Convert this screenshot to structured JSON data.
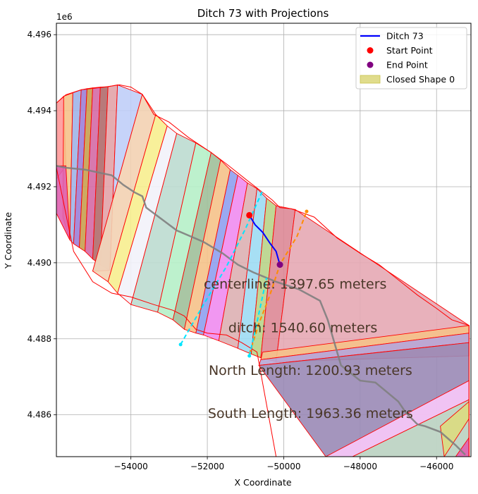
{
  "colors": {
    "ditch": "#0000ff",
    "start": "#ff0000",
    "end": "#800080",
    "closed_shape_fill": "#e0dc8c",
    "closed_shape_edge": "#c8c24a",
    "strip_edge": "#ff0000",
    "projection_north": "#ff8c00",
    "projection_south": "#00e5ff",
    "centerline": "#808080"
  },
  "chart_data": {
    "type": "scatter",
    "title": "Ditch 73 with Projections",
    "xlabel": "X Coordinate",
    "ylabel": "Y Coordinate",
    "y_offset_label": "1e6",
    "xlim": [
      -55950,
      -45100
    ],
    "ylim": [
      4484900,
      4496300
    ],
    "grid": true,
    "legend_placement": "top-right",
    "x_ticks": [
      -54000,
      -52000,
      -50000,
      -48000,
      -46000
    ],
    "x_tick_labels": [
      "−54000",
      "−52000",
      "−50000",
      "−48000",
      "−46000"
    ],
    "y_ticks": [
      4486000,
      4488000,
      4490000,
      4492000,
      4494000,
      4496000
    ],
    "y_tick_labels": [
      "4.486",
      "4.488",
      "4.490",
      "4.492",
      "4.494",
      "4.496"
    ],
    "legend": [
      {
        "label": "Ditch 73",
        "kind": "line",
        "color": "#0000ff"
      },
      {
        "label": "Start Point",
        "kind": "marker",
        "color": "#ff0000"
      },
      {
        "label": "End Point",
        "kind": "marker",
        "color": "#800080"
      },
      {
        "label": "Closed Shape 0",
        "kind": "patch",
        "color": "#e0dc8c"
      }
    ],
    "ditch": {
      "name": "Ditch 73",
      "x": [
        -50900,
        -50750,
        -50550,
        -50350,
        -50200,
        -50100
      ],
      "y": [
        4491250,
        4491000,
        4490800,
        4490500,
        4490300,
        4489950
      ]
    },
    "start_point": {
      "x": -50900,
      "y": 4491250
    },
    "end_point": {
      "x": -50100,
      "y": 4489950
    },
    "north_projection": {
      "x": [
        -50900,
        -50650,
        -50380,
        -50100,
        -49650,
        -49400
      ],
      "y": [
        4487600,
        4488400,
        4489100,
        4489950,
        4490700,
        4491350
      ]
    },
    "south_projection": {
      "x": [
        -52700,
        -52100,
        -51500,
        -51000,
        -50550
      ],
      "y": [
        4487850,
        4488900,
        4489900,
        4490900,
        4491900
      ]
    },
    "south_projection_end": {
      "x": [
        -50900,
        -50750,
        -50600,
        -50450
      ],
      "y": [
        4487550,
        4488200,
        4488900,
        4489600
      ]
    },
    "centerline": {
      "x": [
        -55950,
        -55700,
        -55200,
        -54500,
        -54200,
        -53900,
        -53700,
        -53600,
        -53200,
        -52800,
        -52100,
        -51600,
        -51200,
        -50800,
        -50200,
        -49600,
        -49050,
        -48850,
        -48500,
        -48000,
        -47600,
        -47300,
        -47000,
        -46800,
        -46500,
        -46300,
        -45900,
        -45500,
        -45250
      ],
      "y": [
        4492550,
        4492500,
        4492450,
        4492300,
        4492050,
        4491850,
        4491750,
        4491450,
        4491150,
        4490850,
        4490550,
        4490250,
        4489950,
        4489750,
        4489500,
        4489300,
        4489000,
        4488500,
        4487300,
        4486900,
        4486850,
        4486600,
        4486350,
        4486050,
        4485750,
        4485700,
        4485550,
        4485200,
        4484950
      ]
    },
    "annotations": [
      {
        "text": "centerline: 1397.65 meters",
        "x": -49700,
        "y": 4489450
      },
      {
        "text": "ditch: 1540.60 meters",
        "x": -49500,
        "y": 4488300
      },
      {
        "text": "North Length: 1200.93 meters",
        "x": -49300,
        "y": 4487180
      },
      {
        "text": "South Length: 1963.36 meters",
        "x": -49300,
        "y": 4486050
      }
    ],
    "region_outline": {
      "x": [
        -55950,
        -55700,
        -55300,
        -54700,
        -54300,
        -54000,
        -53700,
        -53400,
        -53000,
        -52500,
        -51900,
        -51500,
        -51000,
        -50550,
        -50300,
        -50100,
        -49800,
        -49200,
        -48600,
        -48000,
        -47500,
        -47000,
        -46500,
        -46000,
        -45600,
        -45150,
        -45150,
        -45500,
        -45900,
        -46500,
        -47300,
        -48200,
        -48900,
        -49500,
        -50200,
        -50700,
        -51100,
        -51500,
        -52000,
        -52300,
        -52600,
        -52900,
        -53400,
        -54000,
        -54500,
        -55000,
        -55500,
        -55950
      ],
      "y": [
        4494200,
        4494420,
        4494550,
        4494620,
        4494680,
        4494620,
        4494430,
        4493900,
        4493700,
        4493300,
        4492900,
        4492600,
        4492200,
        4491850,
        4491650,
        4491450,
        4491420,
        4491200,
        4490650,
        4490250,
        4489950,
        4489550,
        4489150,
        4488800,
        4488500,
        4488350,
        4484900,
        4484900,
        4484900,
        4484900,
        4484900,
        4484900,
        4484900,
        4484900,
        4484900,
        4487650,
        4487900,
        4488100,
        4488150,
        4488250,
        4488600,
        4488750,
        4488900,
        4489100,
        4489200,
        4489500,
        4490300,
        4492500
      ]
    },
    "strips": [
      {
        "color": "#ff9999",
        "poly_x": [
          -55950,
          -55760,
          -55700,
          -55950
        ],
        "poly_y": [
          4494200,
          4494380,
          4492550,
          4492200
        ]
      },
      {
        "color": "#f5c28a",
        "poly_x": [
          -55760,
          -55520,
          -55600,
          -55780
        ],
        "poly_y": [
          4494380,
          4494470,
          4490600,
          4491200
        ]
      },
      {
        "color": "#e060b0",
        "poly_x": [
          -55950,
          -55700,
          -55600,
          -55950
        ],
        "poly_y": [
          4492550,
          4492550,
          4490600,
          4491300
        ]
      },
      {
        "color": "#9fb4e8",
        "poly_x": [
          -55520,
          -55300,
          -55500,
          -55600
        ],
        "poly_y": [
          4494470,
          4494550,
          4490500,
          4490600
        ]
      },
      {
        "color": "#9c7fd8",
        "poly_x": [
          -55300,
          -55150,
          -55350,
          -55500
        ],
        "poly_y": [
          4494550,
          4494580,
          4490400,
          4490500
        ]
      },
      {
        "color": "#c8a050",
        "poly_x": [
          -55150,
          -55000,
          -55200,
          -55350
        ],
        "poly_y": [
          4494580,
          4494600,
          4490300,
          4490400
        ]
      },
      {
        "color": "#d46aa5",
        "poly_x": [
          -55000,
          -54800,
          -55000,
          -55200
        ],
        "poly_y": [
          4494600,
          4494620,
          4490100,
          4490300
        ]
      },
      {
        "color": "#b06b6b",
        "poly_x": [
          -54800,
          -54600,
          -54800,
          -55000
        ],
        "poly_y": [
          4494620,
          4494630,
          4489950,
          4490100
        ]
      },
      {
        "color": "#e2a3a8",
        "poly_x": [
          -54600,
          -54350,
          -54550,
          -54800
        ],
        "poly_y": [
          4494630,
          4494680,
          4489800,
          4489950
        ]
      },
      {
        "color": "#c0cef8",
        "poly_x": [
          -54350,
          -53700,
          -55000,
          -54550
        ],
        "poly_y": [
          4494680,
          4494430,
          4489780,
          4489800
        ]
      },
      {
        "color": "#f3d1b2",
        "poly_x": [
          -53700,
          -53350,
          -54600,
          -55000
        ],
        "poly_y": [
          4494430,
          4493900,
          4489500,
          4489780
        ]
      },
      {
        "color": "#f7ee8f",
        "poly_x": [
          -53350,
          -53050,
          -54350,
          -54600
        ],
        "poly_y": [
          4493900,
          4493600,
          4489200,
          4489500
        ]
      },
      {
        "color": "#f2f2fa",
        "poly_x": [
          -53050,
          -52800,
          -54000,
          -54350
        ],
        "poly_y": [
          4493600,
          4493400,
          4488900,
          4489200
        ]
      },
      {
        "color": "#bcdbd0",
        "poly_x": [
          -52800,
          -52300,
          -53300,
          -54000
        ],
        "poly_y": [
          4493400,
          4493150,
          4488700,
          4488900
        ]
      },
      {
        "color": "#b6f0c8",
        "poly_x": [
          -52300,
          -51900,
          -52900,
          -53300
        ],
        "poly_y": [
          4493150,
          4492900,
          4488500,
          4488700
        ]
      },
      {
        "color": "#a0c09a",
        "poly_x": [
          -51900,
          -51650,
          -52600,
          -52900
        ],
        "poly_y": [
          4492900,
          4492700,
          4488250,
          4488500
        ]
      },
      {
        "color": "#f5c28a",
        "poly_x": [
          -51650,
          -51400,
          -52300,
          -52600
        ],
        "poly_y": [
          4492700,
          4492450,
          4488150,
          4488250
        ]
      },
      {
        "color": "#8fa0ef",
        "poly_x": [
          -51400,
          -51200,
          -52100,
          -52300
        ],
        "poly_y": [
          4492450,
          4492300,
          4488100,
          4488150
        ]
      },
      {
        "color": "#f08cf0",
        "poly_x": [
          -51200,
          -50950,
          -51700,
          -52100
        ],
        "poly_y": [
          4492300,
          4492100,
          4487950,
          4488100
        ]
      },
      {
        "color": "#ddb0b2",
        "poly_x": [
          -50950,
          -50700,
          -51200,
          -51700
        ],
        "poly_y": [
          4492100,
          4491950,
          4487750,
          4487950
        ]
      },
      {
        "color": "#9ddcf3",
        "poly_x": [
          -50700,
          -50450,
          -50850,
          -51200
        ],
        "poly_y": [
          4491950,
          4491700,
          4487600,
          4487750
        ]
      },
      {
        "color": "#b8d48a",
        "poly_x": [
          -50450,
          -50200,
          -50600,
          -50850
        ],
        "poly_y": [
          4491700,
          4491500,
          4487500,
          4487600
        ]
      },
      {
        "color": "#dd8896",
        "poly_x": [
          -50200,
          -49700,
          -50200,
          -50600
        ],
        "poly_y": [
          4491500,
          4491400,
          4487400,
          4487500
        ]
      },
      {
        "color": "#e6a9b4",
        "poly_x": [
          -49700,
          -45150,
          -45150,
          -50200
        ],
        "poly_y": [
          4491400,
          4488350,
          4487550,
          4487400
        ]
      },
      {
        "color": "#f5c28a",
        "poly_x": [
          -50550,
          -45150,
          -45150,
          -50600
        ],
        "poly_y": [
          4487650,
          4488350,
          4488150,
          4487450
        ]
      },
      {
        "color": "#b7a7d6",
        "poly_x": [
          -50600,
          -45150,
          -45150,
          -50650
        ],
        "poly_y": [
          4487450,
          4488150,
          4487900,
          4487300
        ]
      },
      {
        "color": "#9a8ab6",
        "poly_x": [
          -50650,
          -45150,
          -45150,
          -48900
        ],
        "poly_y": [
          4487300,
          4487900,
          4484900,
          4484900
        ]
      },
      {
        "color": "#f8c8f8",
        "poly_x": [
          -48900,
          -45150,
          -45150,
          -48200
        ],
        "poly_y": [
          4484900,
          4486900,
          4486400,
          4484900
        ]
      },
      {
        "color": "#c4ddc8",
        "poly_x": [
          -48200,
          -45150,
          -45150,
          -47300
        ],
        "poly_y": [
          4484900,
          4486400,
          4484900,
          4484900
        ]
      },
      {
        "color": "#dcdc80",
        "poly_x": [
          -45900,
          -45150,
          -45150,
          -45800
        ],
        "poly_y": [
          4485700,
          4486350,
          4485900,
          4484900
        ]
      },
      {
        "color": "#e060b0",
        "poly_x": [
          -45500,
          -45150,
          -45150,
          -45300
        ],
        "poly_y": [
          4484900,
          4485400,
          4484900,
          4484900
        ]
      }
    ]
  }
}
